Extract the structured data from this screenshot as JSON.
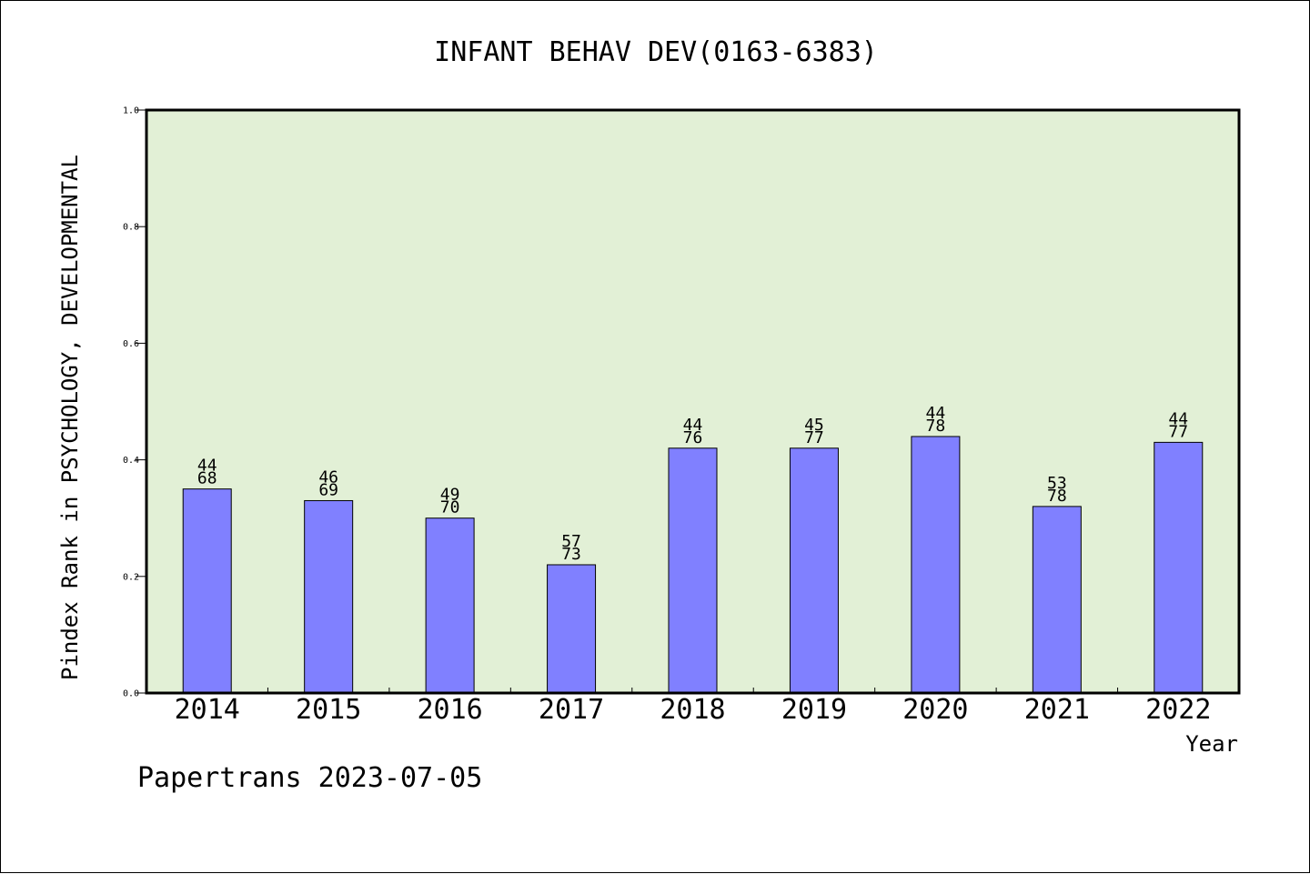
{
  "chart_data": {
    "type": "bar",
    "title": "INFANT BEHAV DEV(0163-6383)",
    "ylabel": "Pindex Rank in PSYCHOLOGY, DEVELOPMENTAL",
    "xlabel": "Year",
    "categories": [
      "2014",
      "2015",
      "2016",
      "2017",
      "2018",
      "2019",
      "2020",
      "2021",
      "2022"
    ],
    "values": [
      0.35,
      0.33,
      0.3,
      0.22,
      0.42,
      0.42,
      0.44,
      0.32,
      0.43
    ],
    "labels_top": [
      "44",
      "46",
      "49",
      "57",
      "44",
      "45",
      "44",
      "53",
      "44"
    ],
    "labels_bottom": [
      "68",
      "69",
      "70",
      "73",
      "76",
      "77",
      "78",
      "78",
      "77"
    ],
    "ylim": [
      0.0,
      1.0
    ],
    "yticks": [
      "0.0",
      "0.2",
      "0.4",
      "0.6",
      "0.8",
      "1.0"
    ],
    "grid": false,
    "colors": {
      "bar": "#8080ff",
      "plot_background": "#e2f0d6",
      "axis": "#000000"
    }
  },
  "footer": "Papertrans 2023-07-05"
}
